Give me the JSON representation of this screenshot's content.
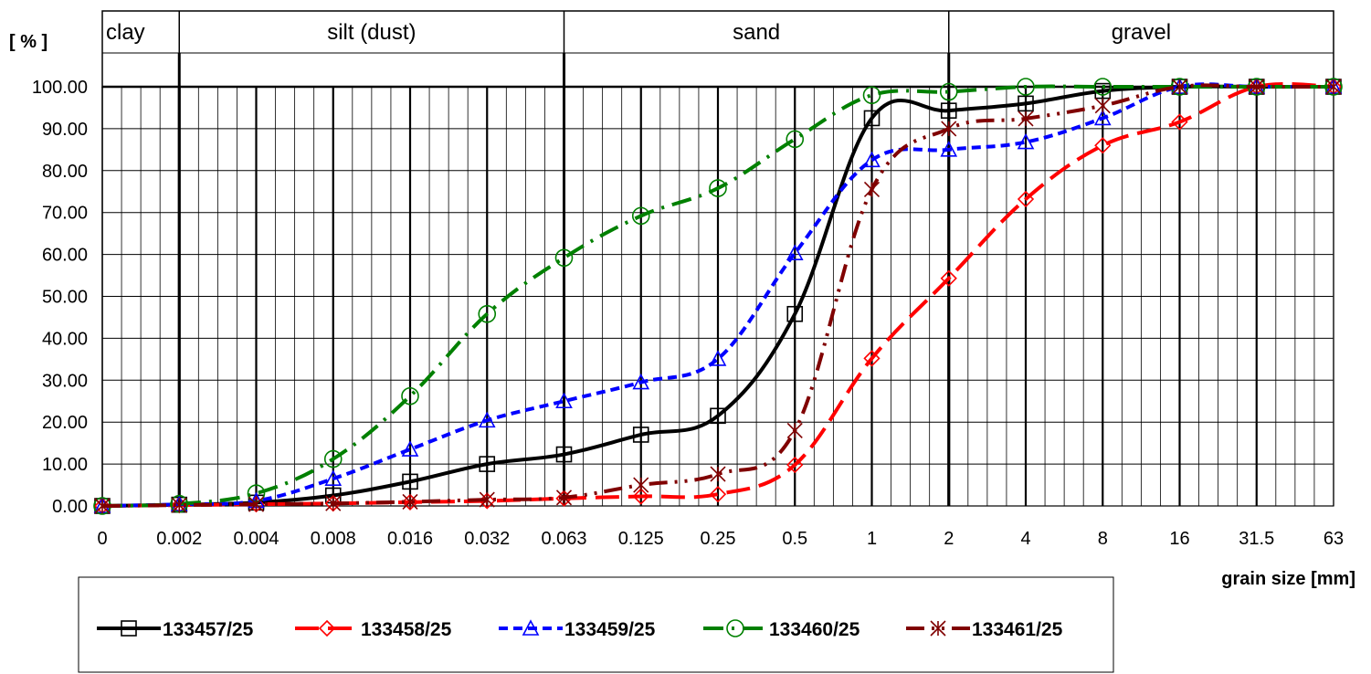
{
  "chart_data": {
    "type": "line",
    "ylabel": "[ % ]",
    "xlabel": "grain size [mm]",
    "x_ticks": [
      "0",
      "0.002",
      "0.004",
      "0.008",
      "0.016",
      "0.032",
      "0.063",
      "0.125",
      "0.25",
      "0.5",
      "1",
      "2",
      "4",
      "8",
      "16",
      "31.5",
      "63"
    ],
    "y_ticks": [
      "0.00",
      "10.00",
      "20.00",
      "30.00",
      "40.00",
      "50.00",
      "60.00",
      "70.00",
      "80.00",
      "90.00",
      "100.00"
    ],
    "ylim": [
      0,
      100
    ],
    "x_scale": "categorical (log-spaced sieve sizes)",
    "grid": true,
    "legend_position": "bottom",
    "bands": [
      {
        "label": "clay",
        "from": "0",
        "to": "0.002"
      },
      {
        "label": "silt (dust)",
        "from": "0.002",
        "to": "0.063"
      },
      {
        "label": "sand",
        "from": "0.063",
        "to": "2"
      },
      {
        "label": "gravel",
        "from": "2",
        "to": "63"
      }
    ],
    "series": [
      {
        "name": "133457/25",
        "color": "#000000",
        "marker": "square",
        "dash": "solid",
        "x": [
          "0",
          "0.002",
          "0.004",
          "0.008",
          "0.016",
          "0.032",
          "0.063",
          "0.125",
          "0.25",
          "0.5",
          "1",
          "2",
          "4",
          "8",
          "16",
          "31.5",
          "63"
        ],
        "values": [
          0,
          0.3,
          0.8,
          2.5,
          5.8,
          10,
          12.3,
          17,
          21.5,
          45.8,
          92.5,
          94.3,
          96,
          99,
          100,
          100,
          100
        ]
      },
      {
        "name": "133458/25",
        "color": "#ff0000",
        "marker": "diamond",
        "dash": "long-dash",
        "x": [
          "0",
          "0.002",
          "0.004",
          "0.008",
          "0.016",
          "0.032",
          "0.063",
          "0.125",
          "0.25",
          "0.5",
          "1",
          "2",
          "4",
          "8",
          "16",
          "31.5",
          "63"
        ],
        "values": [
          0,
          0.2,
          0.4,
          0.6,
          0.9,
          1.2,
          1.8,
          2.3,
          2.8,
          9.8,
          35.2,
          54.3,
          73.2,
          86,
          91.6,
          100,
          100
        ]
      },
      {
        "name": "133459/25",
        "color": "#0000ff",
        "marker": "triangle",
        "dash": "short-dash",
        "x": [
          "0",
          "0.002",
          "0.004",
          "0.008",
          "0.016",
          "0.032",
          "0.063",
          "0.125",
          "0.25",
          "0.5",
          "1",
          "2",
          "4",
          "8",
          "16",
          "31.5",
          "63"
        ],
        "values": [
          0,
          0.4,
          1.2,
          6.5,
          13.5,
          20.4,
          25,
          29.5,
          35.1,
          60.3,
          82.5,
          85,
          86.8,
          92.5,
          100,
          100,
          100
        ]
      },
      {
        "name": "133460/25",
        "color": "#008000",
        "marker": "circle",
        "dash": "dash-dot",
        "x": [
          "0",
          "0.002",
          "0.004",
          "0.008",
          "0.016",
          "0.032",
          "0.063",
          "0.125",
          "0.25",
          "0.5",
          "1",
          "2",
          "4",
          "8",
          "16",
          "31.5",
          "63"
        ],
        "values": [
          0,
          0.5,
          3,
          11.2,
          26.2,
          45.8,
          59.2,
          69.2,
          75.8,
          87.5,
          98,
          98.8,
          100,
          100,
          100,
          100,
          100
        ]
      },
      {
        "name": "133461/25",
        "color": "#800000",
        "marker": "asterisk",
        "dash": "dash-dot-dot",
        "x": [
          "0",
          "0.002",
          "0.004",
          "0.008",
          "0.016",
          "0.032",
          "0.063",
          "0.125",
          "0.25",
          "0.5",
          "1",
          "2",
          "4",
          "8",
          "16",
          "31.5",
          "63"
        ],
        "values": [
          0,
          0.2,
          0.4,
          0.6,
          1,
          1.5,
          2,
          5,
          7.6,
          18,
          75.5,
          90,
          92.4,
          95.5,
          100,
          100,
          100
        ]
      }
    ]
  }
}
